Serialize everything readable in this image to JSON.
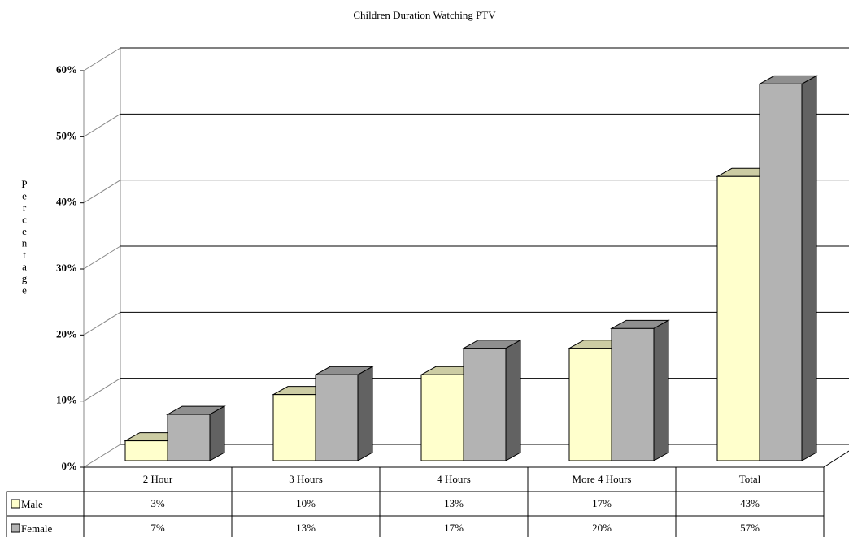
{
  "chart_data": {
    "type": "bar3d",
    "title": "Children Duration Watching PTV",
    "y_label": "Percentage",
    "categories": [
      "2 Hour",
      "3 Hours",
      "4 Hours",
      "More 4 Hours",
      "Total"
    ],
    "series": [
      {
        "name": "Male",
        "color": "#ffffcc",
        "values": [
          3,
          10,
          13,
          17,
          43
        ],
        "value_labels": [
          "3%",
          "10%",
          "13%",
          "17%",
          "43%"
        ]
      },
      {
        "name": "Female",
        "color": "#b3b3b3",
        "values": [
          7,
          13,
          17,
          20,
          57
        ],
        "value_labels": [
          "7%",
          "13%",
          "17%",
          "20%",
          "57%"
        ]
      }
    ],
    "ylim": [
      0,
      60
    ],
    "yticks": [
      {
        "value": 0,
        "label": "0%"
      },
      {
        "value": 10,
        "label": "10%"
      },
      {
        "value": 20,
        "label": "20%"
      },
      {
        "value": 30,
        "label": "30%"
      },
      {
        "value": 40,
        "label": "40%"
      },
      {
        "value": 50,
        "label": "50%"
      },
      {
        "value": 60,
        "label": "60%"
      }
    ],
    "grid": true
  }
}
